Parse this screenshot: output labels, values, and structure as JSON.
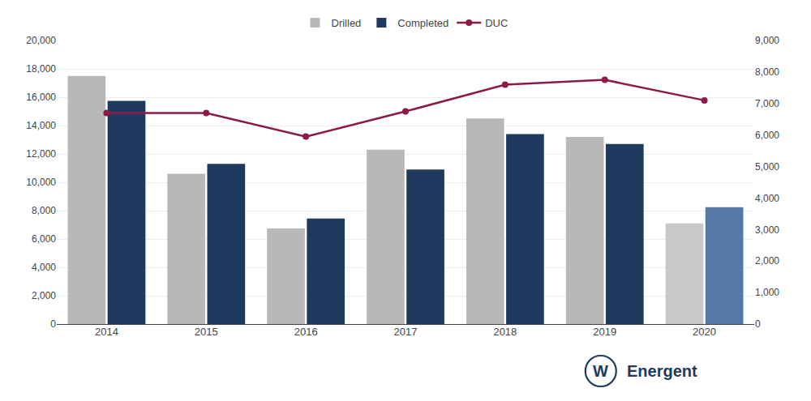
{
  "chart_data": {
    "type": "bar",
    "categories": [
      "2014",
      "2015",
      "2016",
      "2017",
      "2018",
      "2019",
      "2020"
    ],
    "series": [
      {
        "name": "Drilled",
        "type": "bar",
        "colors": [
          "#b8b8b8",
          "#b8b8b8",
          "#b8b8b8",
          "#b8b8b8",
          "#b8b8b8",
          "#b8b8b8",
          "#c8c8c8"
        ],
        "values": [
          17500,
          10600,
          6750,
          12300,
          14500,
          13200,
          7100
        ]
      },
      {
        "name": "Completed",
        "type": "bar",
        "colors": [
          "#1e3a5f",
          "#1e3a5f",
          "#1e3a5f",
          "#1e3a5f",
          "#1e3a5f",
          "#1e3a5f",
          "#5578a8"
        ],
        "values": [
          15750,
          11300,
          7450,
          10900,
          13400,
          12700,
          8250
        ]
      },
      {
        "name": "DUC",
        "type": "line",
        "axis": "y2",
        "color": "#8b1a4a",
        "marker": "circle",
        "values": [
          6700,
          6700,
          5950,
          6750,
          7600,
          7750,
          7100
        ]
      }
    ],
    "ylim": [
      0,
      20000
    ],
    "yticks": [
      0,
      {
        "value": 2000,
        "label": "2,000"
      },
      {
        "value": 4000,
        "label": "4,000"
      },
      {
        "value": 6000,
        "label": "6,000"
      },
      {
        "value": 8000,
        "label": "8,000"
      },
      {
        "value": 10000,
        "label": "10,000"
      },
      {
        "value": 12000,
        "label": "12,000"
      },
      {
        "value": 14000,
        "label": "14,000"
      },
      {
        "value": 16000,
        "label": "16,000"
      },
      {
        "value": 18000,
        "label": "18,000"
      },
      {
        "value": 20000,
        "label": "20,000"
      }
    ],
    "y2lim": [
      0,
      9000
    ],
    "y2ticks": [
      0,
      {
        "value": 1000,
        "label": "1,000"
      },
      {
        "value": 2000,
        "label": "2,000"
      },
      {
        "value": 3000,
        "label": "3,000"
      },
      {
        "value": 4000,
        "label": "4,000"
      },
      {
        "value": 5000,
        "label": "5,000"
      },
      {
        "value": 6000,
        "label": "6,000"
      },
      {
        "value": 7000,
        "label": "7,000"
      },
      {
        "value": 8000,
        "label": "8,000"
      },
      {
        "value": 9000,
        "label": "9,000"
      }
    ],
    "grid": true,
    "legend": "top",
    "annotations": [
      {
        "text": "W",
        "color": "#1e3a5f"
      },
      {
        "text": "Energent",
        "color": "#1e3a5f"
      }
    ]
  }
}
